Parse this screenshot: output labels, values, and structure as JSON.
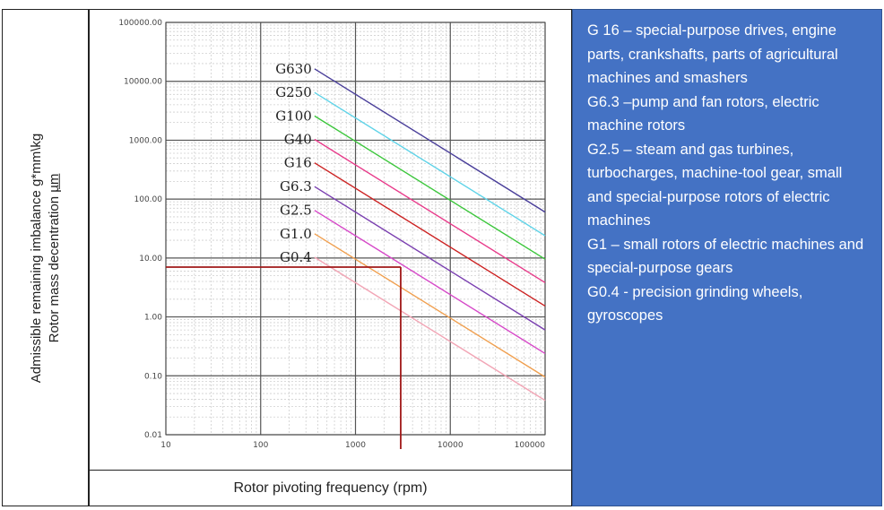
{
  "chart_data": {
    "type": "line",
    "title": "",
    "xlabel": "Rotor pivoting frequency (rpm)",
    "ylabel_lines": [
      "Admissible remaining imbalance g*mm\\kg",
      "Rotor mass decentration",
      "µm"
    ],
    "x_scale": "log",
    "y_scale": "log",
    "xlim": [
      10,
      100000
    ],
    "ylim": [
      0.01,
      100000
    ],
    "x_ticks": [
      "10",
      "100",
      "1000",
      "10000",
      "100000"
    ],
    "y_ticks": [
      "0.01",
      "0.10",
      "1.00",
      "10.00",
      "100.00",
      "1000.00",
      "10000.00",
      "100000.00"
    ],
    "grid": true,
    "series": [
      {
        "name": "G630",
        "color": "#4a3f9a",
        "x": [
          370,
          100000
        ],
        "y": [
          16261,
          60.2
        ]
      },
      {
        "name": "G250",
        "color": "#5fd3e8",
        "x": [
          370,
          100000
        ],
        "y": [
          6453,
          23.9
        ]
      },
      {
        "name": "G100",
        "color": "#3cc63c",
        "x": [
          370,
          100000
        ],
        "y": [
          2581,
          9.55
        ]
      },
      {
        "name": "G40",
        "color": "#e83a8a",
        "x": [
          370,
          100000
        ],
        "y": [
          1032,
          3.82
        ]
      },
      {
        "name": "G16",
        "color": "#cc2222",
        "x": [
          370,
          100000
        ],
        "y": [
          413,
          1.53
        ]
      },
      {
        "name": "G6.3",
        "color": "#7a3fb0",
        "x": [
          370,
          100000
        ],
        "y": [
          163,
          0.6
        ]
      },
      {
        "name": "G2.5",
        "color": "#d648c8",
        "x": [
          370,
          100000
        ],
        "y": [
          64.5,
          0.239
        ]
      },
      {
        "name": "G1.0",
        "color": "#f0a050",
        "x": [
          370,
          100000
        ],
        "y": [
          25.8,
          0.0955
        ]
      },
      {
        "name": "G0.4",
        "color": "#f2a6b6",
        "x": [
          370,
          100000
        ],
        "y": [
          10.3,
          0.0382
        ]
      }
    ],
    "annotation": {
      "color": "#a01818",
      "x": 3000,
      "y": 7
    }
  },
  "description": {
    "lines": [
      "G 16 – special-purpose drives, engine parts, crankshafts,  parts of agricultural machines and smashers",
      "G6.3 –pump and fan rotors, electric machine rotors",
      "G2.5 – steam and gas turbines, turbocharges, machine-tool gear, small and special-purpose rotors of electric machines",
      "G1 – small rotors of electric machines and special-purpose gears",
      "G0.4 - precision grinding wheels, gyroscopes"
    ]
  }
}
